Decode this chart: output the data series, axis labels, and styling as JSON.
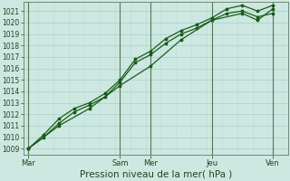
{
  "background_color": "#cce8e0",
  "plot_bg_color": "#cce8e0",
  "grid_color": "#aacccc",
  "grid_color_minor": "#bbdddd",
  "line_color_dark": "#1a5c1a",
  "line_color_med": "#2a7a2a",
  "xlabel": "Pression niveau de la mer( hPa )",
  "xlabel_fontsize": 7.5,
  "ytick_labels": [
    "1009",
    "1010",
    "1011",
    "1012",
    "1013",
    "1014",
    "1015",
    "1016",
    "1017",
    "1018",
    "1019",
    "1020",
    "1021"
  ],
  "ytick_values": [
    1009,
    1010,
    1011,
    1012,
    1013,
    1014,
    1015,
    1016,
    1017,
    1018,
    1019,
    1020,
    1021
  ],
  "ylim": [
    1008.5,
    1021.8
  ],
  "xtick_labels": [
    "Mar",
    "Sam",
    "Mer",
    "Jeu",
    "Ven"
  ],
  "xtick_positions": [
    0,
    36,
    48,
    72,
    96
  ],
  "xlim": [
    -2,
    102
  ],
  "vline_positions": [
    0,
    36,
    48,
    72,
    96
  ],
  "vline_color": "#557755",
  "spine_color": "#778877",
  "series1_x": [
    0,
    6,
    12,
    18,
    24,
    30,
    36,
    42,
    48,
    54,
    60,
    66,
    72,
    78,
    84,
    90,
    96
  ],
  "series1_y": [
    1009.0,
    1010.2,
    1011.6,
    1012.5,
    1013.0,
    1013.8,
    1015.0,
    1016.8,
    1017.5,
    1018.6,
    1019.3,
    1019.8,
    1020.4,
    1021.2,
    1021.5,
    1021.0,
    1021.5
  ],
  "series2_x": [
    0,
    6,
    12,
    18,
    24,
    30,
    36,
    42,
    48,
    54,
    60,
    66,
    72,
    78,
    84,
    90,
    96
  ],
  "series2_y": [
    1009.0,
    1010.0,
    1011.2,
    1012.2,
    1012.8,
    1013.5,
    1014.8,
    1016.5,
    1017.2,
    1018.2,
    1019.0,
    1019.5,
    1020.2,
    1020.8,
    1021.0,
    1020.5,
    1020.8
  ],
  "series3_x": [
    0,
    12,
    24,
    36,
    48,
    60,
    72,
    84,
    90,
    96
  ],
  "series3_y": [
    1009.0,
    1011.0,
    1012.5,
    1014.5,
    1016.2,
    1018.5,
    1020.2,
    1020.8,
    1020.2,
    1021.2
  ],
  "tick_fontsize": 5.5,
  "tick_color": "#224422",
  "linewidth": 0.9,
  "markersize": 2.5
}
